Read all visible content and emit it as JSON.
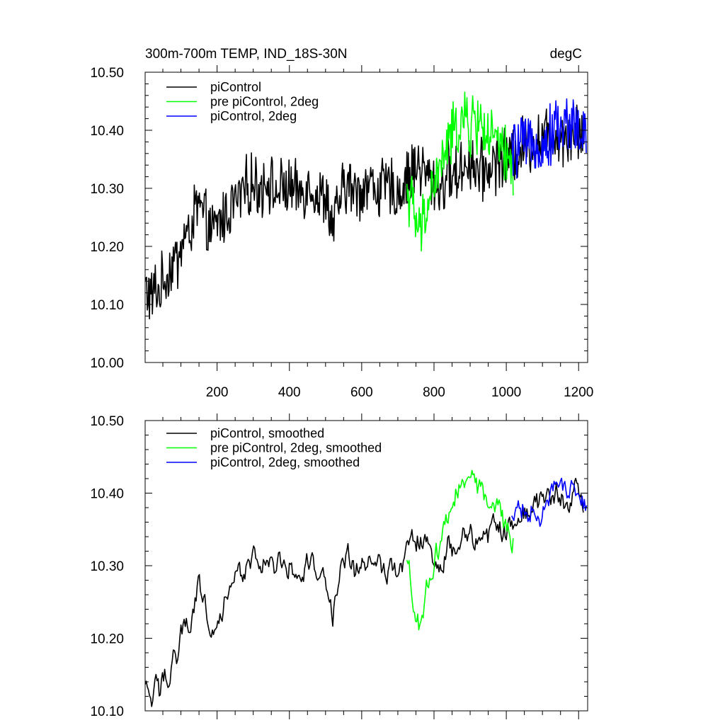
{
  "chart_data": [
    {
      "type": "line",
      "title": "300m-700m TEMP, IND_18S-30N",
      "units": "degC",
      "xlim": [
        1,
        1225
      ],
      "ylim": [
        10.0,
        10.5
      ],
      "xticks": [
        200,
        400,
        600,
        800,
        1000,
        1200
      ],
      "xtick_labels": [
        "200",
        "400",
        "600",
        "800",
        "1000",
        "1200"
      ],
      "yticks": [
        10.0,
        10.1,
        10.2,
        10.3,
        10.4,
        10.5
      ],
      "ytick_labels": [
        "10.00",
        "10.10",
        "10.20",
        "10.30",
        "10.40",
        "10.50"
      ],
      "series": [
        {
          "name": "piControl",
          "color": "#000000",
          "x": [
            1,
            10,
            20,
            30,
            40,
            50,
            60,
            70,
            80,
            90,
            100,
            110,
            120,
            130,
            140,
            150,
            160,
            170,
            180,
            190,
            200,
            220,
            240,
            260,
            280,
            300,
            320,
            340,
            360,
            380,
            400,
            420,
            440,
            460,
            480,
            500,
            520,
            540,
            560,
            580,
            600,
            620,
            640,
            660,
            680,
            700,
            720,
            740,
            760,
            780,
            800,
            820,
            840,
            860,
            880,
            900,
            920,
            940,
            960,
            980,
            1000,
            1020,
            1040,
            1060,
            1080,
            1100,
            1120,
            1140,
            1160,
            1180,
            1200,
            1215
          ],
          "values": [
            10.13,
            10.12,
            10.11,
            10.13,
            10.12,
            10.14,
            10.15,
            10.16,
            10.18,
            10.17,
            10.2,
            10.22,
            10.21,
            10.24,
            10.26,
            10.27,
            10.25,
            10.24,
            10.23,
            10.22,
            10.24,
            10.25,
            10.27,
            10.28,
            10.3,
            10.31,
            10.3,
            10.32,
            10.29,
            10.3,
            10.3,
            10.29,
            10.3,
            10.31,
            10.28,
            10.29,
            10.23,
            10.28,
            10.31,
            10.29,
            10.3,
            10.31,
            10.3,
            10.3,
            10.3,
            10.29,
            10.31,
            10.33,
            10.34,
            10.32,
            10.31,
            10.3,
            10.33,
            10.32,
            10.34,
            10.35,
            10.33,
            10.33,
            10.34,
            10.35,
            10.35,
            10.36,
            10.37,
            10.38,
            10.38,
            10.39,
            10.39,
            10.4,
            10.39,
            10.4,
            10.4,
            10.39
          ]
        },
        {
          "name": "pre piControl, 2deg",
          "color": "#00ff00",
          "x": [
            725,
            740,
            750,
            760,
            770,
            780,
            790,
            800,
            810,
            820,
            830,
            840,
            850,
            860,
            870,
            880,
            890,
            900,
            910,
            920,
            930,
            940,
            950,
            960,
            970,
            980,
            990,
            1000,
            1010,
            1020
          ],
          "values": [
            10.3,
            10.27,
            10.24,
            10.22,
            10.24,
            10.27,
            10.29,
            10.31,
            10.32,
            10.34,
            10.36,
            10.38,
            10.39,
            10.4,
            10.41,
            10.42,
            10.41,
            10.4,
            10.42,
            10.41,
            10.42,
            10.4,
            10.39,
            10.38,
            10.38,
            10.37,
            10.36,
            10.35,
            10.34,
            10.34
          ]
        },
        {
          "name": "piControl, 2deg",
          "color": "#0000ff",
          "x": [
            1015,
            1030,
            1045,
            1060,
            1075,
            1090,
            1105,
            1120,
            1135,
            1150,
            1165,
            1180,
            1195,
            1210,
            1222
          ],
          "values": [
            10.36,
            10.37,
            10.38,
            10.36,
            10.39,
            10.38,
            10.37,
            10.39,
            10.41,
            10.4,
            10.41,
            10.42,
            10.4,
            10.39,
            10.38
          ]
        }
      ]
    },
    {
      "type": "line",
      "title": "",
      "xlim": [
        1,
        1225
      ],
      "ylim": [
        10.1,
        10.5
      ],
      "xticks": [
        200,
        400,
        600,
        800,
        1000,
        1200
      ],
      "yticks": [
        10.1,
        10.2,
        10.3,
        10.4,
        10.5
      ],
      "ytick_labels": [
        "10.10",
        "10.20",
        "10.30",
        "10.40",
        "10.50"
      ],
      "series": [
        {
          "name": "piControl, smoothed",
          "color": "#000000",
          "x": [
            1,
            10,
            20,
            30,
            40,
            50,
            60,
            70,
            80,
            90,
            100,
            110,
            120,
            130,
            140,
            150,
            160,
            170,
            180,
            190,
            200,
            220,
            240,
            260,
            280,
            300,
            320,
            340,
            360,
            380,
            400,
            420,
            440,
            460,
            480,
            500,
            520,
            540,
            560,
            580,
            600,
            620,
            640,
            660,
            680,
            700,
            720,
            740,
            760,
            780,
            800,
            820,
            840,
            860,
            880,
            900,
            920,
            940,
            960,
            980,
            1000,
            1020,
            1040,
            1060,
            1080,
            1100,
            1120,
            1140,
            1160,
            1180,
            1200,
            1215
          ],
          "values": [
            10.13,
            10.12,
            10.11,
            10.13,
            10.12,
            10.14,
            10.15,
            10.16,
            10.18,
            10.17,
            10.2,
            10.22,
            10.21,
            10.24,
            10.26,
            10.27,
            10.25,
            10.24,
            10.23,
            10.22,
            10.24,
            10.25,
            10.27,
            10.28,
            10.3,
            10.31,
            10.3,
            10.32,
            10.29,
            10.3,
            10.3,
            10.29,
            10.3,
            10.31,
            10.28,
            10.29,
            10.23,
            10.28,
            10.31,
            10.29,
            10.3,
            10.31,
            10.3,
            10.3,
            10.3,
            10.29,
            10.31,
            10.33,
            10.34,
            10.32,
            10.31,
            10.3,
            10.33,
            10.32,
            10.34,
            10.35,
            10.33,
            10.33,
            10.34,
            10.35,
            10.35,
            10.36,
            10.37,
            10.38,
            10.38,
            10.39,
            10.39,
            10.4,
            10.39,
            10.4,
            10.4,
            10.39
          ]
        },
        {
          "name": "pre piControl, 2deg, smoothed",
          "color": "#00ff00",
          "x": [
            725,
            740,
            750,
            760,
            770,
            780,
            790,
            800,
            810,
            820,
            830,
            840,
            850,
            860,
            870,
            880,
            890,
            900,
            910,
            920,
            930,
            940,
            950,
            960,
            970,
            980,
            990,
            1000,
            1010,
            1020
          ],
          "values": [
            10.3,
            10.27,
            10.24,
            10.22,
            10.24,
            10.27,
            10.29,
            10.31,
            10.32,
            10.34,
            10.36,
            10.38,
            10.39,
            10.4,
            10.41,
            10.42,
            10.41,
            10.4,
            10.42,
            10.41,
            10.42,
            10.4,
            10.39,
            10.38,
            10.38,
            10.37,
            10.36,
            10.35,
            10.34,
            10.34
          ]
        },
        {
          "name": "piControl, 2deg, smoothed",
          "color": "#0000ff",
          "x": [
            1015,
            1030,
            1045,
            1060,
            1075,
            1090,
            1105,
            1120,
            1135,
            1150,
            1165,
            1180,
            1195,
            1210,
            1222
          ],
          "values": [
            10.36,
            10.37,
            10.38,
            10.36,
            10.39,
            10.38,
            10.37,
            10.39,
            10.41,
            10.4,
            10.41,
            10.42,
            10.4,
            10.39,
            10.38
          ]
        }
      ]
    }
  ]
}
